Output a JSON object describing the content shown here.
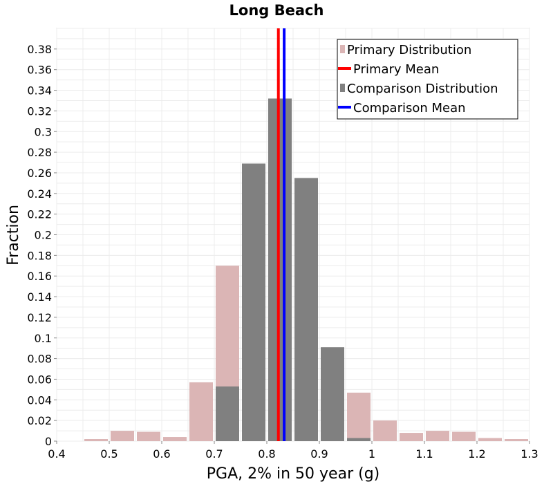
{
  "chart_data": {
    "type": "bar",
    "title": "Long Beach",
    "xlabel": "PGA, 2% in 50 year (g)",
    "ylabel": "Fraction",
    "xlim": [
      0.4,
      1.3
    ],
    "ylim": [
      0,
      0.4
    ],
    "bin_width": 0.05,
    "x_ticks": [
      "0.4",
      "0.5",
      "0.6",
      "0.7",
      "0.8",
      "0.9",
      "1",
      "1.1",
      "1.2",
      "1.3"
    ],
    "y_ticks": [
      "0",
      "0.02",
      "0.04",
      "0.06",
      "0.08",
      "0.1",
      "0.12",
      "0.14",
      "0.16",
      "0.18",
      "0.2",
      "0.22",
      "0.24",
      "0.26",
      "0.28",
      "0.3",
      "0.32",
      "0.34",
      "0.36",
      "0.38"
    ],
    "grid": true,
    "legend_position": "top-right",
    "series": [
      {
        "name": "Primary Distribution",
        "kind": "histogram",
        "color": "#dbb5b5",
        "bins": [
          {
            "x": 0.475,
            "value": 0.002
          },
          {
            "x": 0.525,
            "value": 0.01
          },
          {
            "x": 0.575,
            "value": 0.009
          },
          {
            "x": 0.625,
            "value": 0.004
          },
          {
            "x": 0.675,
            "value": 0.057
          },
          {
            "x": 0.725,
            "value": 0.17
          },
          {
            "x": 0.975,
            "value": 0.047
          },
          {
            "x": 1.025,
            "value": 0.02
          },
          {
            "x": 1.075,
            "value": 0.008
          },
          {
            "x": 1.125,
            "value": 0.01
          },
          {
            "x": 1.175,
            "value": 0.009
          },
          {
            "x": 1.225,
            "value": 0.003
          },
          {
            "x": 1.275,
            "value": 0.002
          }
        ]
      },
      {
        "name": "Comparison Distribution",
        "kind": "histogram",
        "color": "#808080",
        "bins": [
          {
            "x": 0.725,
            "value": 0.053
          },
          {
            "x": 0.775,
            "value": 0.269
          },
          {
            "x": 0.825,
            "value": 0.332
          },
          {
            "x": 0.875,
            "value": 0.255
          },
          {
            "x": 0.925,
            "value": 0.091
          },
          {
            "x": 0.975,
            "value": 0.003
          }
        ]
      },
      {
        "name": "Primary Mean",
        "kind": "vline",
        "color": "#ff0000",
        "x": 0.822
      },
      {
        "name": "Comparison Mean",
        "kind": "vline",
        "color": "#0000ff",
        "x": 0.833
      }
    ],
    "legend": [
      {
        "label": "Primary Distribution",
        "kind": "square",
        "color": "#dbb5b5"
      },
      {
        "label": "Primary Mean",
        "kind": "line",
        "color": "#ff0000"
      },
      {
        "label": "Comparison Distribution",
        "kind": "square",
        "color": "#808080"
      },
      {
        "label": "Comparison Mean",
        "kind": "line",
        "color": "#0000ff"
      }
    ]
  }
}
